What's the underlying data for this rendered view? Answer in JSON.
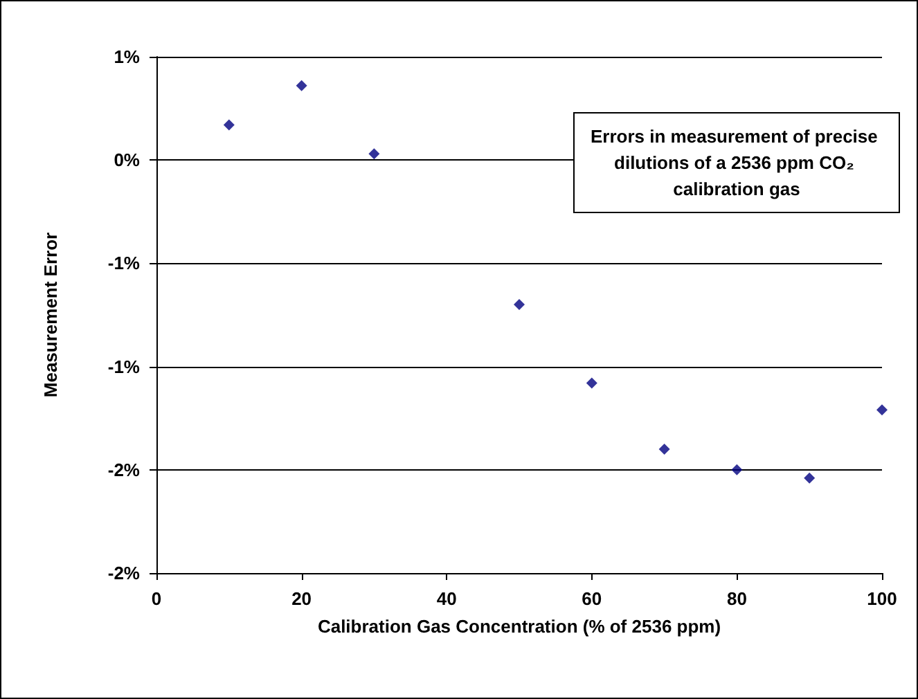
{
  "chart_data": {
    "type": "scatter",
    "title": "Errors in measurement of precise dilutions of a 2536 ppm CO₂ calibration gas",
    "xlabel": "Calibration Gas Concentration (% of 2536 ppm)",
    "ylabel": "Measurement Error",
    "x": [
      10,
      20,
      30,
      50,
      60,
      70,
      80,
      90,
      100
    ],
    "series": [
      {
        "color": "#000080",
        "values": [
          0.17,
          0.36,
          0.03,
          -0.7,
          -1.08,
          -1.4,
          -1.5,
          -1.54,
          -1.21
        ]
      }
    ],
    "xlim": [
      0,
      100
    ],
    "xticks": [
      0,
      20,
      40,
      60,
      80,
      100
    ],
    "ylim": [
      -2,
      0.5
    ],
    "yticks": [
      {
        "value": 0.5,
        "label": "1%"
      },
      {
        "value": 0,
        "label": "0%"
      },
      {
        "value": -0.5,
        "label": "-1%"
      },
      {
        "value": -1,
        "label": "-1%"
      },
      {
        "value": -1.5,
        "label": "-2%"
      },
      {
        "value": -2,
        "label": "-2%"
      }
    ],
    "grid": "y",
    "marker": "diamond"
  }
}
